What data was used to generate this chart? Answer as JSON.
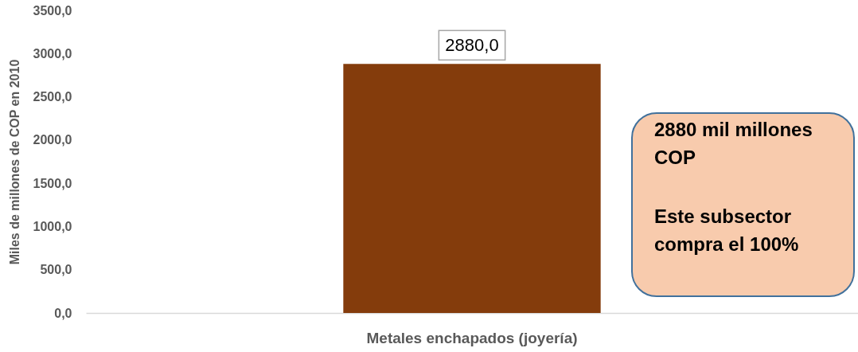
{
  "chart_data": {
    "type": "bar",
    "ylabel": "Miles de millones de COP en 2010",
    "categories": [
      "Metales enchapados (joyería)"
    ],
    "values": [
      2880
    ],
    "color": "#843c0c",
    "value_labels": [
      "2880,0"
    ],
    "ylim": [
      0,
      3500
    ],
    "yticks": [
      {
        "value": 0,
        "label": "0,0"
      },
      {
        "value": 500,
        "label": "500,0"
      },
      {
        "value": 1000,
        "label": "1000,0"
      },
      {
        "value": 1500,
        "label": "1500,0"
      },
      {
        "value": 2000,
        "label": "2000,0"
      },
      {
        "value": 2500,
        "label": "2500,0"
      },
      {
        "value": 3000,
        "label": "3000,0"
      },
      {
        "value": 3500,
        "label": "3500,0"
      }
    ],
    "annotations": [
      "2880 mil millones COP",
      "Este subsector compra el 100%"
    ]
  }
}
